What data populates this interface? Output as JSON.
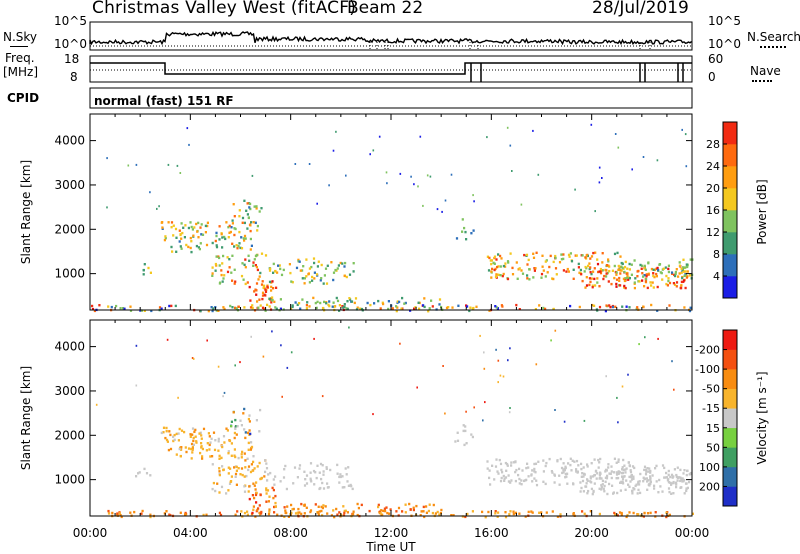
{
  "header": {
    "title": "Christmas Valley West (fitACF)",
    "beam": "Beam 22",
    "date": "28/Jul/2019"
  },
  "top_panels": {
    "nsky_label": "N.Sky",
    "nsearch_label": "N.Search",
    "noise_ticks_left": [
      "10^5",
      "10^0"
    ],
    "noise_ticks_right": [
      "10^5",
      "10^0"
    ],
    "freq_label_line1": "Freq.",
    "freq_label_line2": "[MHz]",
    "freq_ticks": [
      "18",
      "8"
    ],
    "nave_label": "Nave",
    "nave_ticks": [
      "60",
      "0"
    ],
    "cpid_label": "CPID",
    "cpid_text": "normal (fast) 151 RF"
  },
  "chart_data": [
    {
      "type": "heatmap",
      "name": "power",
      "ylabel": "Slant Range [km]",
      "ylim": [
        180,
        4600
      ],
      "yticks": [
        1000,
        2000,
        3000,
        4000
      ],
      "x_tick_labels": [
        "00:00",
        "04:00",
        "08:00",
        "12:00",
        "16:00",
        "20:00",
        "00:00"
      ],
      "colorbar": {
        "label": "Power [dB]",
        "ticks": [
          "4",
          "8",
          "12",
          "16",
          "20",
          "24",
          "28"
        ],
        "colors": [
          "#1b1ee6",
          "#2d6fba",
          "#3f9b6f",
          "#7fc35f",
          "#f4c81f",
          "#ff9d10",
          "#ff6a0f",
          "#f22b12",
          "#e50f10"
        ]
      }
    },
    {
      "type": "heatmap",
      "name": "velocity",
      "ylabel": "Slant Range [km]",
      "ylim": [
        180,
        4600
      ],
      "yticks": [
        1000,
        2000,
        3000,
        4000
      ],
      "x_tick_labels": [
        "00:00",
        "04:00",
        "08:00",
        "12:00",
        "16:00",
        "20:00",
        "00:00"
      ],
      "xlabel": "Time UT",
      "colorbar": {
        "label": "Velocity [m s⁻¹]",
        "ticks": [
          "200",
          "100",
          "50",
          "15",
          "-15",
          "-50",
          "-100",
          "-200"
        ],
        "colors": [
          "#1f2fc8",
          "#2f6fa8",
          "#3f9f62",
          "#77d040",
          "#c8c8c8",
          "#f8b42c",
          "#f88c10",
          "#f45010",
          "#ee1a12"
        ]
      }
    }
  ]
}
